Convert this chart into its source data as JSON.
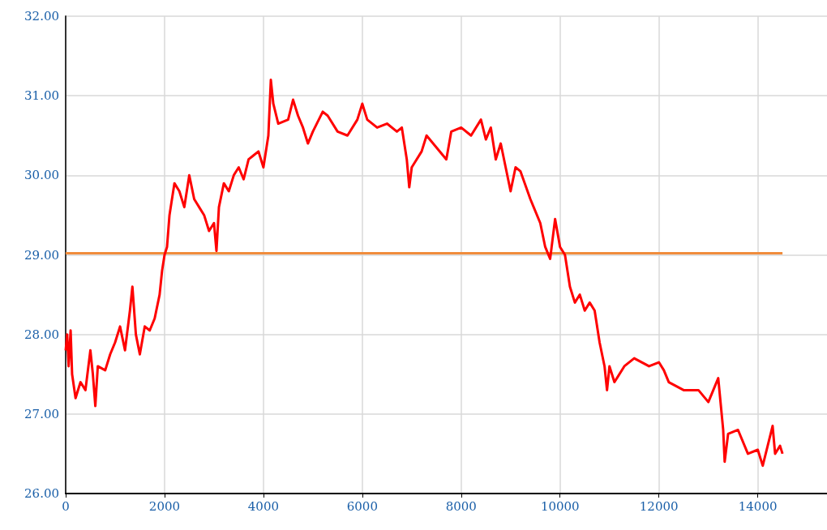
{
  "chart_data": {
    "type": "line",
    "xlim": [
      0,
      15400
    ],
    "xticks": [
      0,
      2000,
      4000,
      6000,
      8000,
      10000,
      12000,
      14000
    ],
    "ylim": [
      26,
      32
    ],
    "yticks": [
      {
        "value": 26,
        "label": "26.00"
      },
      {
        "value": 27,
        "label": "27.00"
      },
      {
        "value": 28,
        "label": "28.00"
      },
      {
        "value": 29,
        "label": "29.00"
      },
      {
        "value": 30,
        "label": "30.00"
      },
      {
        "value": 31,
        "label": "31.00"
      },
      {
        "value": 32,
        "label": "32.00"
      }
    ],
    "grid": true,
    "marker": "none",
    "line_style": "solid",
    "series": [
      {
        "color": "#ff0000",
        "x": [
          0,
          30,
          60,
          100,
          130,
          200,
          300,
          400,
          500,
          550,
          600,
          650,
          800,
          900,
          1000,
          1100,
          1200,
          1300,
          1350,
          1420,
          1500,
          1600,
          1700,
          1800,
          1900,
          1950,
          2000,
          2050,
          2100,
          2200,
          2300,
          2400,
          2500,
          2600,
          2700,
          2800,
          2900,
          3000,
          3050,
          3100,
          3200,
          3300,
          3400,
          3500,
          3600,
          3700,
          3800,
          3900,
          4000,
          4100,
          4150,
          4200,
          4300,
          4500,
          4600,
          4700,
          4800,
          4900,
          5000,
          5200,
          5300,
          5500,
          5700,
          5900,
          6000,
          6100,
          6300,
          6500,
          6700,
          6800,
          6900,
          6950,
          7000,
          7200,
          7300,
          7500,
          7700,
          7800,
          8000,
          8200,
          8400,
          8500,
          8600,
          8700,
          8800,
          8900,
          9000,
          9100,
          9200,
          9400,
          9600,
          9700,
          9800,
          9900,
          10000,
          10100,
          10200,
          10300,
          10400,
          10500,
          10600,
          10700,
          10800,
          10900,
          10950,
          11000,
          11100,
          11300,
          11500,
          11800,
          12000,
          12100,
          12200,
          12500,
          12800,
          13000,
          13100,
          13200,
          13300,
          13330,
          13400,
          13600,
          13800,
          14000,
          14100,
          14200,
          14300,
          14350,
          14450,
          14500
        ],
        "values": [
          27.8,
          28.0,
          27.6,
          28.05,
          27.5,
          27.2,
          27.4,
          27.3,
          27.8,
          27.5,
          27.1,
          27.6,
          27.55,
          27.75,
          27.9,
          28.1,
          27.8,
          28.3,
          28.6,
          28.0,
          27.75,
          28.1,
          28.05,
          28.2,
          28.5,
          28.8,
          29.0,
          29.1,
          29.5,
          29.9,
          29.8,
          29.6,
          30.0,
          29.7,
          29.6,
          29.5,
          29.3,
          29.4,
          29.05,
          29.6,
          29.9,
          29.8,
          30.0,
          30.1,
          29.95,
          30.2,
          30.25,
          30.3,
          30.1,
          30.5,
          31.2,
          30.9,
          30.65,
          30.7,
          30.95,
          30.75,
          30.6,
          30.4,
          30.55,
          30.8,
          30.75,
          30.55,
          30.5,
          30.7,
          30.9,
          30.7,
          30.6,
          30.65,
          30.55,
          30.6,
          30.2,
          29.85,
          30.1,
          30.3,
          30.5,
          30.35,
          30.2,
          30.55,
          30.6,
          30.5,
          30.7,
          30.45,
          30.6,
          30.2,
          30.4,
          30.1,
          29.8,
          30.1,
          30.05,
          29.7,
          29.4,
          29.1,
          28.95,
          29.45,
          29.1,
          29.0,
          28.6,
          28.4,
          28.5,
          28.3,
          28.4,
          28.3,
          27.9,
          27.6,
          27.3,
          27.6,
          27.4,
          27.6,
          27.7,
          27.6,
          27.65,
          27.55,
          27.4,
          27.3,
          27.3,
          27.15,
          27.3,
          27.45,
          26.8,
          26.4,
          26.75,
          26.8,
          26.5,
          26.55,
          26.35,
          26.6,
          26.85,
          26.5,
          26.6,
          26.5
        ]
      },
      {
        "color": "#f08c3c",
        "x": [
          0,
          14500
        ],
        "values": [
          29.02,
          29.02
        ]
      }
    ]
  }
}
